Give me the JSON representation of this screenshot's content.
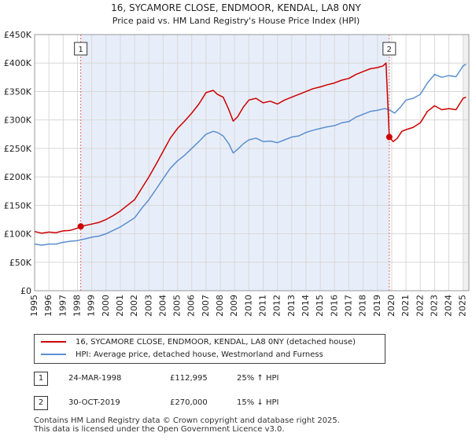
{
  "chart_data": {
    "type": "line",
    "title": "16, SYCAMORE CLOSE, ENDMOOR, KENDAL, LA8 0NY",
    "subtitle": "Price paid vs. HM Land Registry's House Price Index (HPI)",
    "xlabel": "",
    "ylabel": "",
    "xlim": [
      1995,
      2025.4
    ],
    "ylim": [
      0,
      450000
    ],
    "y_ticks": [
      0,
      50000,
      100000,
      150000,
      200000,
      250000,
      300000,
      350000,
      400000,
      450000
    ],
    "y_tick_labels": [
      "£0",
      "£50K",
      "£100K",
      "£150K",
      "£200K",
      "£250K",
      "£300K",
      "£350K",
      "£400K",
      "£450K"
    ],
    "x_ticks": [
      1995,
      1996,
      1997,
      1998,
      1999,
      2000,
      2001,
      2002,
      2003,
      2004,
      2005,
      2006,
      2007,
      2008,
      2009,
      2010,
      2011,
      2012,
      2013,
      2014,
      2015,
      2016,
      2017,
      2018,
      2019,
      2020,
      2021,
      2022,
      2023,
      2024,
      2025
    ],
    "x_tick_labels": [
      "1995",
      "1996",
      "1997",
      "1998",
      "1999",
      "2000",
      "2001",
      "2002",
      "2003",
      "2004",
      "2005",
      "2006",
      "2007",
      "2008",
      "2009",
      "2010",
      "2011",
      "2012",
      "2013",
      "2014",
      "2015",
      "2016",
      "2017",
      "2018",
      "2019",
      "2020",
      "2021",
      "2022",
      "2023",
      "2024",
      "2025"
    ],
    "grid": true,
    "shaded_span": [
      1998.23,
      2019.83
    ],
    "series": [
      {
        "name": "16, SYCAMORE CLOSE, ENDMOOR, KENDAL, LA8 0NY (detached house)",
        "color": "#cc0000",
        "points": [
          [
            1995.0,
            104000
          ],
          [
            1995.5,
            101000
          ],
          [
            1996.0,
            103000
          ],
          [
            1996.5,
            102000
          ],
          [
            1997.0,
            105000
          ],
          [
            1997.5,
            106000
          ],
          [
            1998.0,
            110000
          ],
          [
            1998.23,
            112995
          ],
          [
            1998.6,
            115000
          ],
          [
            1999.0,
            117000
          ],
          [
            1999.5,
            120000
          ],
          [
            2000.0,
            125000
          ],
          [
            2000.5,
            132000
          ],
          [
            2001.0,
            140000
          ],
          [
            2001.5,
            150000
          ],
          [
            2002.0,
            160000
          ],
          [
            2002.5,
            180000
          ],
          [
            2003.0,
            200000
          ],
          [
            2003.5,
            222000
          ],
          [
            2004.0,
            245000
          ],
          [
            2004.5,
            268000
          ],
          [
            2005.0,
            285000
          ],
          [
            2005.5,
            298000
          ],
          [
            2006.0,
            312000
          ],
          [
            2006.5,
            328000
          ],
          [
            2007.0,
            348000
          ],
          [
            2007.5,
            352000
          ],
          [
            2007.8,
            345000
          ],
          [
            2008.2,
            340000
          ],
          [
            2008.6,
            318000
          ],
          [
            2008.9,
            298000
          ],
          [
            2009.2,
            305000
          ],
          [
            2009.6,
            322000
          ],
          [
            2010.0,
            335000
          ],
          [
            2010.5,
            338000
          ],
          [
            2011.0,
            330000
          ],
          [
            2011.5,
            333000
          ],
          [
            2012.0,
            328000
          ],
          [
            2012.5,
            335000
          ],
          [
            2013.0,
            340000
          ],
          [
            2013.5,
            345000
          ],
          [
            2014.0,
            350000
          ],
          [
            2014.5,
            355000
          ],
          [
            2015.0,
            358000
          ],
          [
            2015.5,
            362000
          ],
          [
            2016.0,
            365000
          ],
          [
            2016.5,
            370000
          ],
          [
            2017.0,
            373000
          ],
          [
            2017.5,
            380000
          ],
          [
            2018.0,
            385000
          ],
          [
            2018.5,
            390000
          ],
          [
            2019.0,
            392000
          ],
          [
            2019.4,
            395000
          ],
          [
            2019.6,
            400000
          ],
          [
            2019.83,
            270000
          ],
          [
            2020.1,
            262000
          ],
          [
            2020.4,
            268000
          ],
          [
            2020.7,
            280000
          ],
          [
            2021.0,
            283000
          ],
          [
            2021.5,
            287000
          ],
          [
            2022.0,
            295000
          ],
          [
            2022.5,
            315000
          ],
          [
            2023.0,
            325000
          ],
          [
            2023.5,
            318000
          ],
          [
            2024.0,
            320000
          ],
          [
            2024.5,
            318000
          ],
          [
            2025.0,
            338000
          ],
          [
            2025.2,
            340000
          ]
        ]
      },
      {
        "name": "HPI: Average price, detached house, Westmorland and Furness",
        "color": "#5b8fd1",
        "points": [
          [
            1995.0,
            82000
          ],
          [
            1995.5,
            80000
          ],
          [
            1996.0,
            82000
          ],
          [
            1996.5,
            82000
          ],
          [
            1997.0,
            85000
          ],
          [
            1997.5,
            87000
          ],
          [
            1998.0,
            88000
          ],
          [
            1998.5,
            91000
          ],
          [
            1999.0,
            94000
          ],
          [
            1999.5,
            96000
          ],
          [
            2000.0,
            100000
          ],
          [
            2000.5,
            106000
          ],
          [
            2001.0,
            112000
          ],
          [
            2001.5,
            120000
          ],
          [
            2002.0,
            128000
          ],
          [
            2002.5,
            145000
          ],
          [
            2003.0,
            160000
          ],
          [
            2003.5,
            178000
          ],
          [
            2004.0,
            197000
          ],
          [
            2004.5,
            215000
          ],
          [
            2005.0,
            228000
          ],
          [
            2005.5,
            238000
          ],
          [
            2006.0,
            250000
          ],
          [
            2006.5,
            262000
          ],
          [
            2007.0,
            275000
          ],
          [
            2007.5,
            280000
          ],
          [
            2007.8,
            278000
          ],
          [
            2008.2,
            272000
          ],
          [
            2008.6,
            258000
          ],
          [
            2008.9,
            242000
          ],
          [
            2009.2,
            248000
          ],
          [
            2009.6,
            258000
          ],
          [
            2010.0,
            265000
          ],
          [
            2010.5,
            268000
          ],
          [
            2011.0,
            262000
          ],
          [
            2011.5,
            263000
          ],
          [
            2012.0,
            260000
          ],
          [
            2012.5,
            265000
          ],
          [
            2013.0,
            270000
          ],
          [
            2013.5,
            272000
          ],
          [
            2014.0,
            278000
          ],
          [
            2014.5,
            282000
          ],
          [
            2015.0,
            285000
          ],
          [
            2015.5,
            288000
          ],
          [
            2016.0,
            290000
          ],
          [
            2016.5,
            295000
          ],
          [
            2017.0,
            297000
          ],
          [
            2017.5,
            305000
          ],
          [
            2018.0,
            310000
          ],
          [
            2018.5,
            315000
          ],
          [
            2019.0,
            317000
          ],
          [
            2019.5,
            320000
          ],
          [
            2019.83,
            318000
          ],
          [
            2020.2,
            312000
          ],
          [
            2020.6,
            322000
          ],
          [
            2021.0,
            335000
          ],
          [
            2021.5,
            338000
          ],
          [
            2022.0,
            345000
          ],
          [
            2022.5,
            365000
          ],
          [
            2023.0,
            380000
          ],
          [
            2023.5,
            375000
          ],
          [
            2024.0,
            378000
          ],
          [
            2024.5,
            376000
          ],
          [
            2025.0,
            395000
          ],
          [
            2025.2,
            398000
          ]
        ]
      }
    ],
    "transactions": [
      {
        "label": "1",
        "x": 1998.23,
        "y": 112995
      },
      {
        "label": "2",
        "x": 2019.83,
        "y": 270000
      }
    ]
  },
  "legend": {
    "property_label": "16, SYCAMORE CLOSE, ENDMOOR, KENDAL, LA8 0NY (detached house)",
    "hpi_label": "HPI: Average price, detached house, Westmorland and Furness"
  },
  "table": [
    {
      "num": "1",
      "date": "24-MAR-1998",
      "price": "£112,995",
      "hpi": "25% ↑ HPI"
    },
    {
      "num": "2",
      "date": "30-OCT-2019",
      "price": "£270,000",
      "hpi": "15% ↓ HPI"
    }
  ],
  "footer": {
    "line1": "Contains HM Land Registry data © Crown copyright and database right 2025.",
    "line2": "This data is licensed under the Open Government Licence v3.0."
  }
}
